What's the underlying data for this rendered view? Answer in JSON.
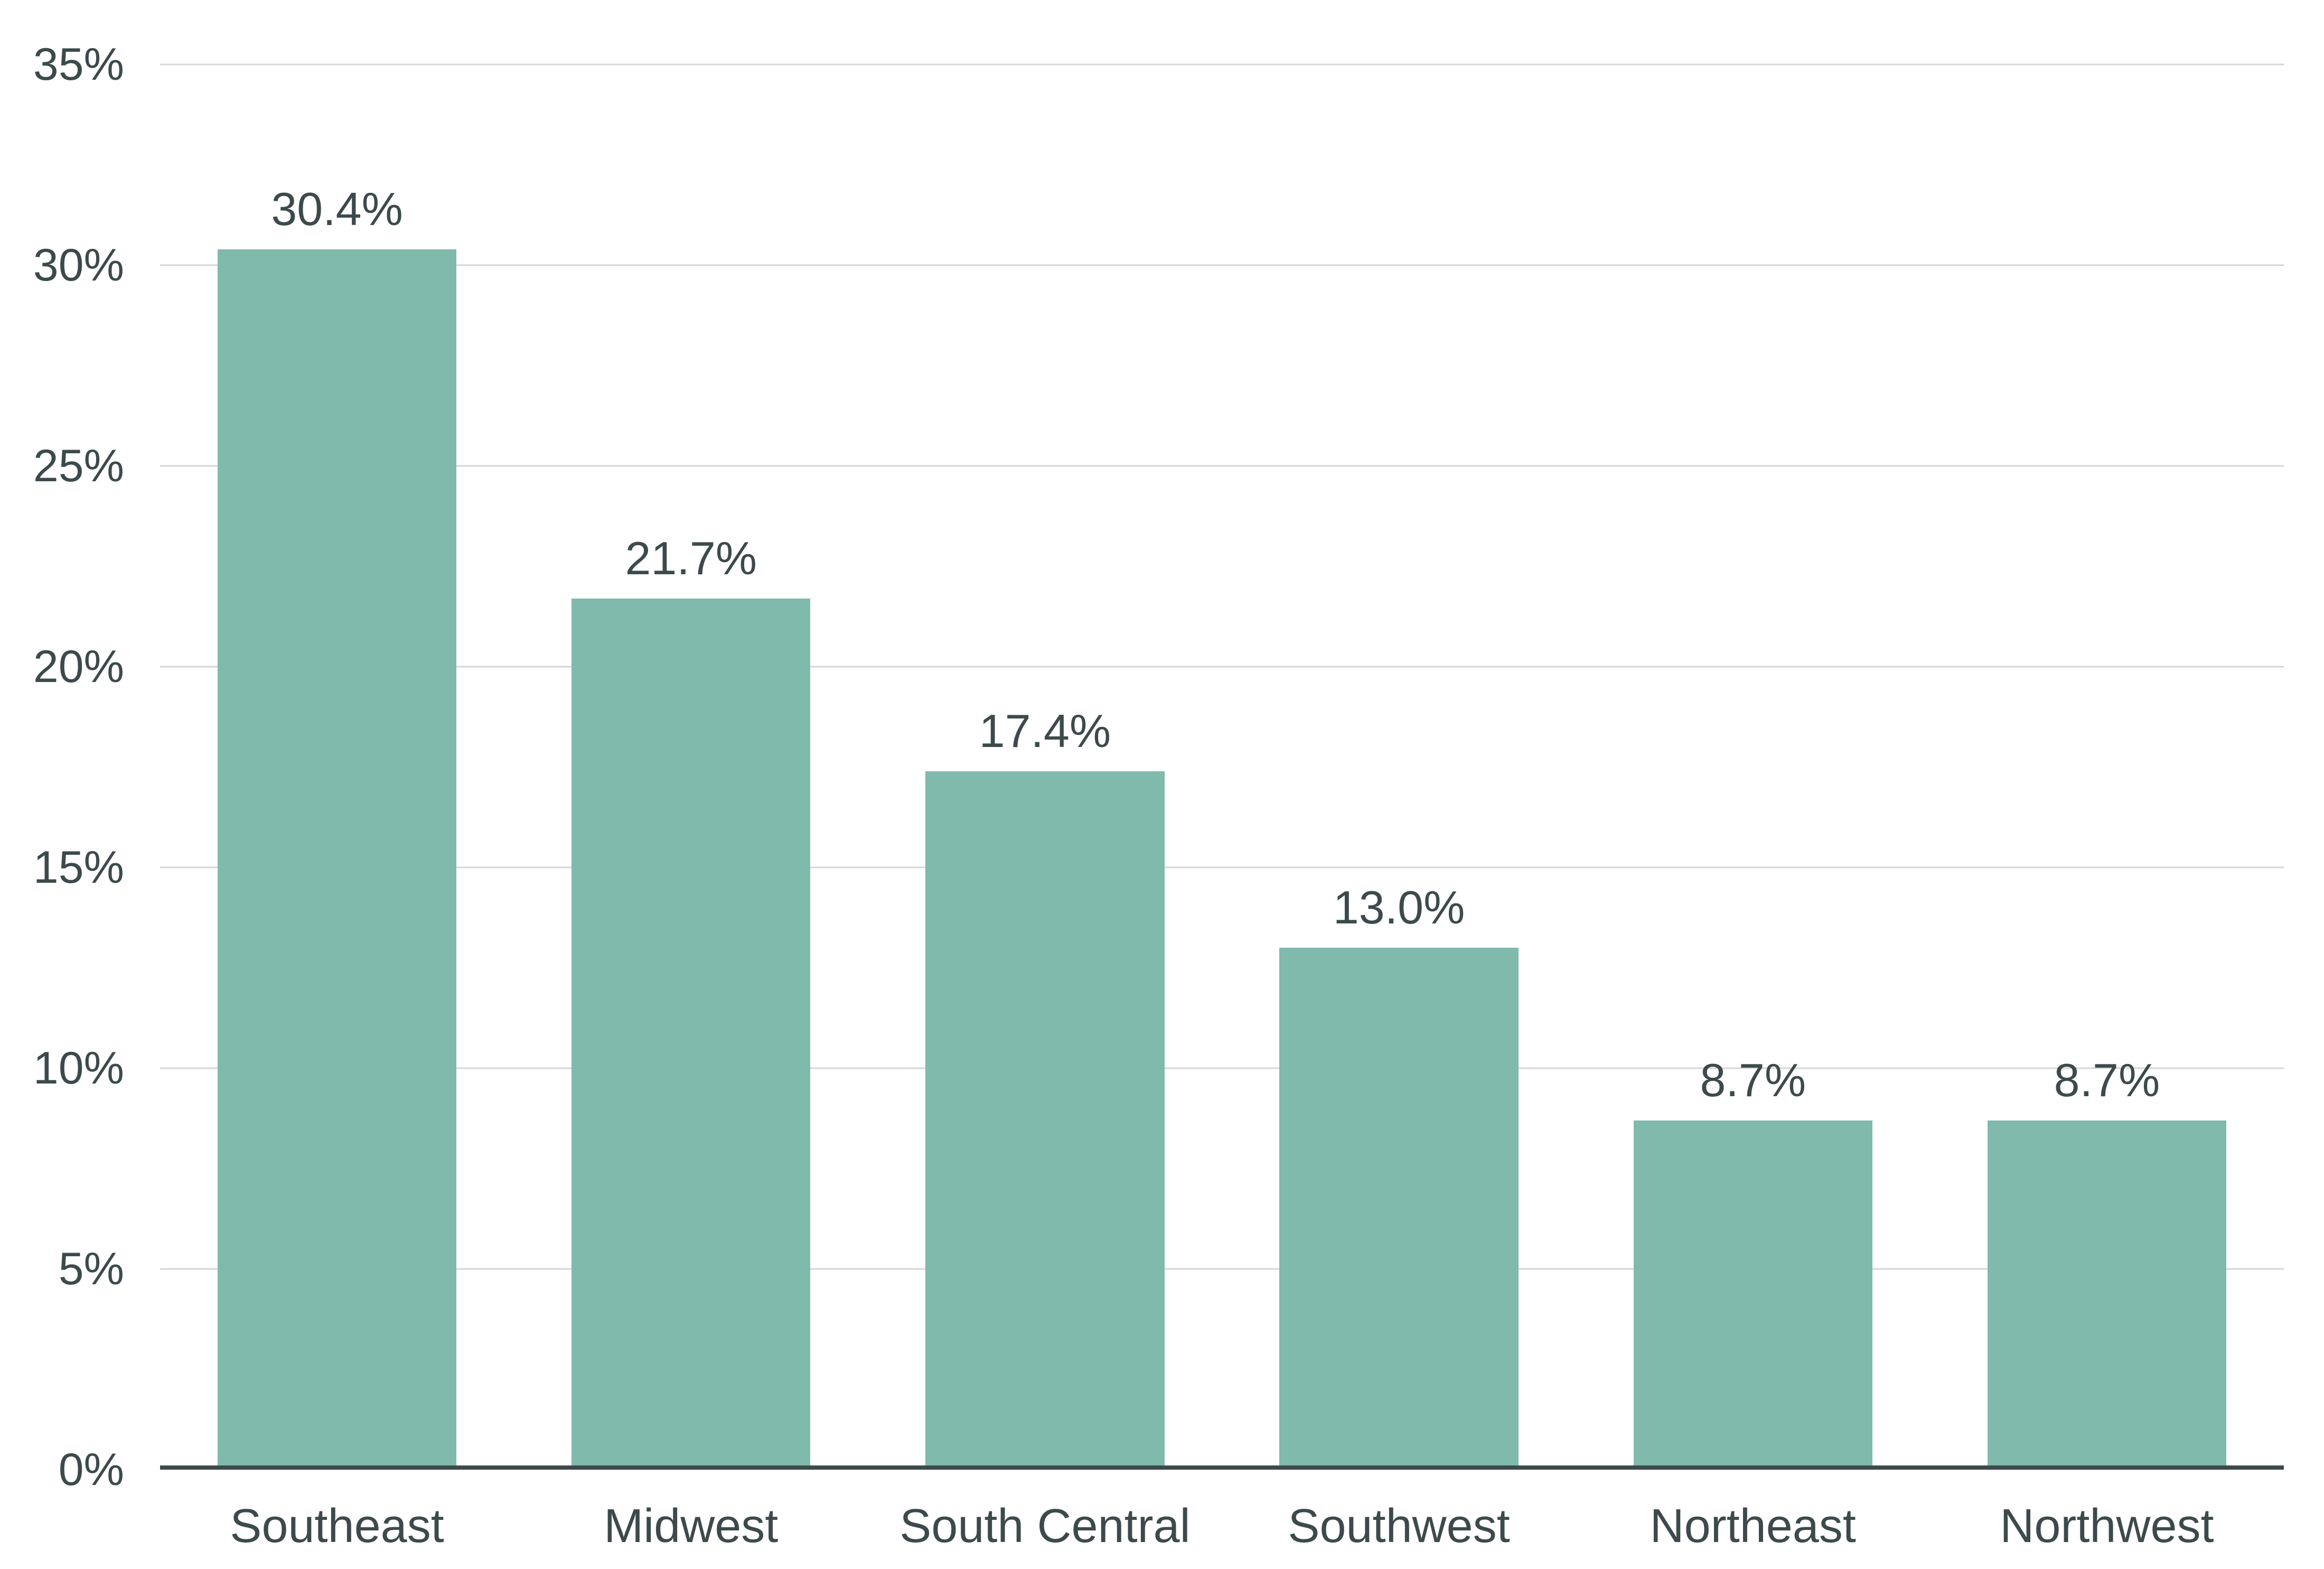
{
  "chart_data": {
    "type": "bar",
    "title": "",
    "xlabel": "",
    "ylabel": "",
    "categories": [
      "Southeast",
      "Midwest",
      "South Central",
      "Southwest",
      "Northeast",
      "Northwest"
    ],
    "values": [
      30.4,
      21.7,
      17.4,
      13.0,
      8.7,
      8.7
    ],
    "value_labels": [
      "30.4%",
      "21.7%",
      "17.4%",
      "13.0%",
      "8.7%",
      "8.7%"
    ],
    "ylim": [
      0,
      35
    ],
    "y_ticks": [
      {
        "value": 35,
        "label": "35%"
      },
      {
        "value": 30,
        "label": "30%"
      },
      {
        "value": 25,
        "label": "25%"
      },
      {
        "value": 20,
        "label": "20%"
      },
      {
        "value": 15,
        "label": "15%"
      },
      {
        "value": 10,
        "label": "10%"
      },
      {
        "value": 5,
        "label": "5%"
      },
      {
        "value": 0,
        "label": "0%"
      }
    ],
    "grid": "horizontal",
    "legend_position": "none",
    "colors": {
      "bar": "#7fbaac",
      "text": "#3d4a4c",
      "gridline": "#d6d6d6",
      "axis_line": "#3d4a4c",
      "background": "#ffffff"
    }
  }
}
